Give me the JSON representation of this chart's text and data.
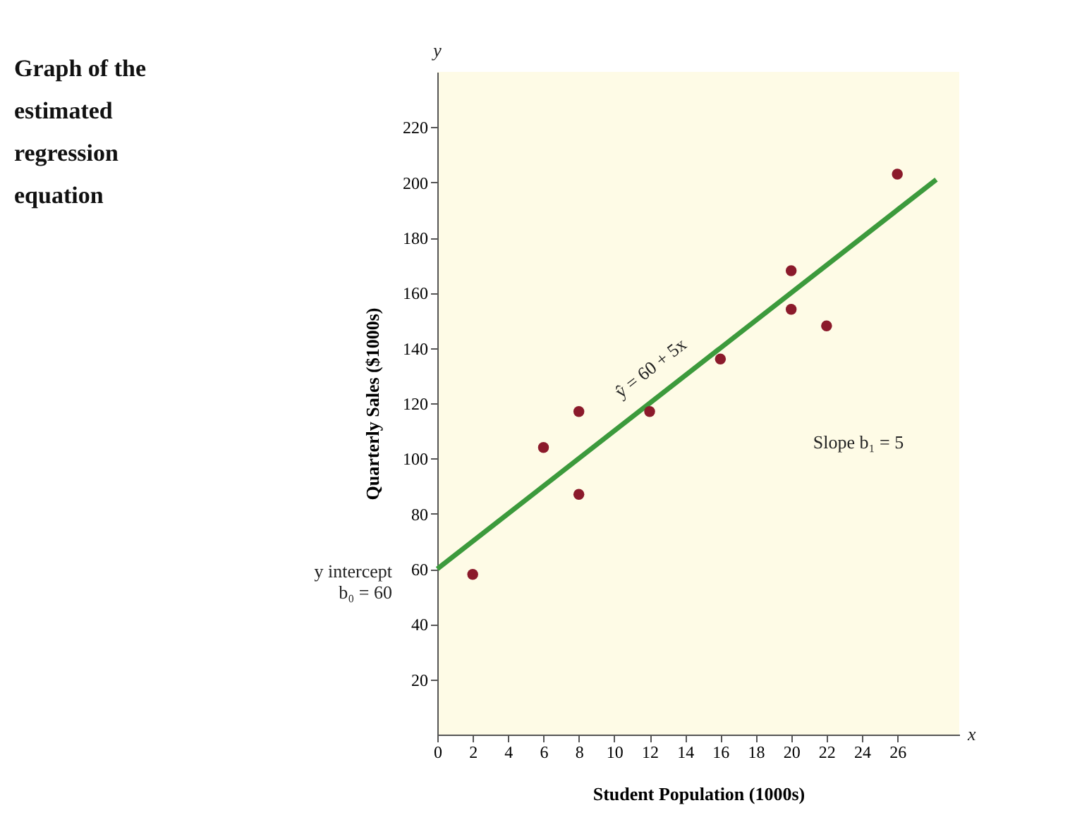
{
  "chart_data": {
    "type": "scatter",
    "title": "Graph of the estimated regression equation",
    "xlabel": "Student Population (1000s)",
    "ylabel": "Quarterly Sales ($1000s)",
    "series": [
      {
        "color": "#8b1a2b",
        "marker": "circle",
        "x": [
          2,
          6,
          8,
          8,
          12,
          16,
          20,
          20,
          22,
          26
        ],
        "values": [
          58,
          104,
          87,
          117,
          117,
          136,
          154,
          168,
          148,
          203
        ]
      },
      {
        "type": "line",
        "color": "#3c9a3c",
        "x": [
          0,
          28.2
        ],
        "values": [
          60,
          201
        ]
      }
    ],
    "xlim": [
      0,
      29.5
    ],
    "ylim": [
      0,
      240
    ],
    "xticks": [
      0,
      2,
      4,
      6,
      8,
      10,
      12,
      14,
      16,
      18,
      20,
      22,
      24,
      26
    ],
    "yticks": [
      20,
      40,
      60,
      80,
      100,
      120,
      140,
      160,
      180,
      200,
      220
    ],
    "annotations": [
      {
        "text": "y intercept\nb₀ = 60",
        "x": 0,
        "y": 60
      },
      {
        "text": "ŷ = 60 + 5x",
        "x": 13,
        "y": 125
      },
      "Slope b₁ = 5",
      "y",
      "x"
    ],
    "grid": false
  }
}
